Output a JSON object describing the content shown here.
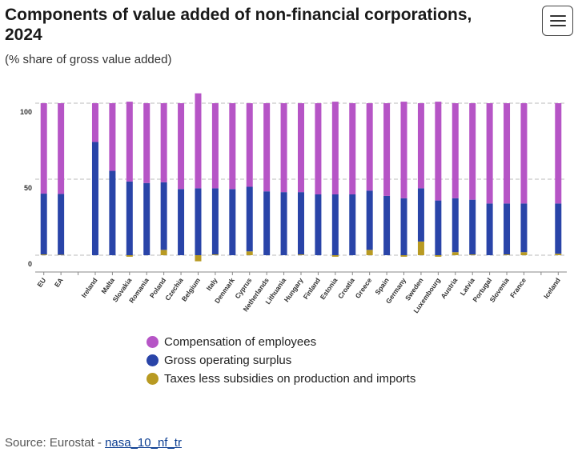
{
  "header": {
    "title": "Components of value added of non-financial corporations, 2024",
    "subtitle": "(% share of gross value added)"
  },
  "menu": {
    "label": "Chart menu",
    "icon": "hamburger-menu-icon"
  },
  "colors": {
    "compensation": "#b655c6",
    "gos": "#2944a8",
    "taxes": "#b89a22",
    "grid": "#bbbbbb"
  },
  "legend": {
    "items": [
      {
        "label": "Compensation of employees",
        "series": "compensation"
      },
      {
        "label": "Gross operating surplus",
        "series": "gos"
      },
      {
        "label": "Taxes less subsidies on production and imports",
        "series": "taxes"
      }
    ]
  },
  "source": {
    "prefix": "Source: Eurostat - ",
    "link_text": "nasa_10_nf_tr"
  },
  "chart_data": {
    "type": "bar",
    "stacked": true,
    "title": "Components of value added of non-financial corporations, 2024",
    "subtitle": "(% share of gross value added)",
    "ylim": [
      0,
      100
    ],
    "yticks": [
      0,
      50,
      100
    ],
    "grid": true,
    "legend_position": "bottom",
    "categories": [
      "EU",
      "EA",
      "",
      "Ireland",
      "Malta",
      "Slovakia",
      "Romania",
      "Poland",
      "Czechia",
      "Belgium",
      "Italy",
      "Denmark",
      "Cyprus",
      "Netherlands",
      "Lithuania",
      "Hungary",
      "Finland",
      "Estonia",
      "Croatia",
      "Greece",
      "Spain",
      "Germany",
      "Sweden",
      "Luxembourg",
      "Austria",
      "Latvia",
      "Portugal",
      "Slovenia",
      "France",
      "",
      "Iceland"
    ],
    "series": [
      {
        "name": "Taxes less subsidies on production and imports",
        "key": "taxes",
        "values": [
          0.5,
          0.3,
          null,
          0.0,
          0.0,
          -1.0,
          0.0,
          3.5,
          0.0,
          -4.0,
          0.5,
          0.0,
          2.5,
          0.0,
          0.0,
          0.5,
          0.0,
          -1.0,
          0.0,
          3.5,
          0.0,
          -1.0,
          9.0,
          -1.0,
          2.0,
          0.5,
          0.0,
          0.5,
          2.0,
          null,
          1.0
        ]
      },
      {
        "name": "Gross operating surplus",
        "key": "gos",
        "values": [
          40.0,
          40.0,
          null,
          74.5,
          55.5,
          48.5,
          47.5,
          44.5,
          43.5,
          44.0,
          43.5,
          43.5,
          42.5,
          42.0,
          41.5,
          41.0,
          40.0,
          40.0,
          40.0,
          39.0,
          39.0,
          37.5,
          35.0,
          36.0,
          35.5,
          36.0,
          34.0,
          33.5,
          32.0,
          null,
          33.0
        ]
      },
      {
        "name": "Compensation of employees",
        "key": "compensation",
        "values": [
          59.5,
          59.7,
          null,
          25.5,
          44.5,
          52.5,
          52.5,
          52.0,
          56.5,
          62.5,
          56.0,
          56.5,
          55.0,
          58.0,
          58.5,
          58.5,
          60.0,
          61.0,
          60.0,
          57.5,
          61.0,
          63.5,
          56.0,
          65.0,
          62.5,
          63.5,
          66.0,
          66.0,
          66.0,
          null,
          66.0
        ]
      }
    ]
  }
}
